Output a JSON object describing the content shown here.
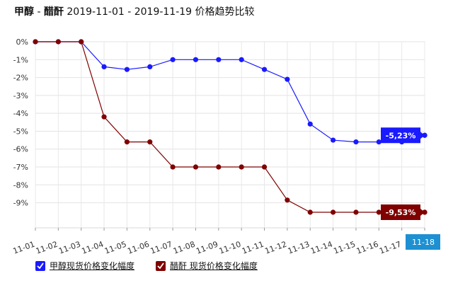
{
  "header": {
    "title_a": "甲醇",
    "title_sep": " - ",
    "title_b": "醋酐",
    "title_rest": " 2019-11-01 - 2019-11-19 价格趋势比较"
  },
  "legend": {
    "items": [
      {
        "label": "甲醇现货价格变化幅度",
        "color": "#1a1aff"
      },
      {
        "label": "醋酐 现货价格变化幅度",
        "color": "#800000"
      }
    ]
  },
  "chart_data": {
    "type": "line",
    "categories": [
      "11-01",
      "11-02",
      "11-03",
      "11-04",
      "11-05",
      "11-06",
      "11-07",
      "11-08",
      "11-09",
      "11-10",
      "11-11",
      "11-12",
      "11-13",
      "11-14",
      "11-15",
      "11-16",
      "11-17",
      "11-18"
    ],
    "y_ticks": [
      "0%",
      "-1%",
      "-2%",
      "-3%",
      "-4%",
      "-5%",
      "-6%",
      "-7%",
      "-8%",
      "-9%"
    ],
    "ylim": [
      -10.4,
      0
    ],
    "grid": true,
    "series": [
      {
        "name": "甲醇现货价格变化幅度",
        "color": "#1a1aff",
        "values": [
          0,
          0,
          0,
          -1.4,
          -1.55,
          -1.4,
          -1.0,
          -1.0,
          -1.0,
          -1.0,
          -1.55,
          -2.1,
          -4.6,
          -5.5,
          -5.6,
          -5.6,
          -5.6,
          -5.23
        ],
        "end_label": "-5,23%"
      },
      {
        "name": "醋酐 现货价格变化幅度",
        "color": "#800000",
        "values": [
          0,
          0,
          0,
          -4.2,
          -5.6,
          -5.6,
          -7.0,
          -7.0,
          -7.0,
          -7.0,
          -7.0,
          -8.85,
          -9.53,
          -9.53,
          -9.53,
          -9.53,
          -9.53,
          -9.53
        ],
        "end_label": "-9,53%"
      }
    ],
    "highlight": {
      "label": "11-18",
      "color": "#1e90d2"
    }
  }
}
